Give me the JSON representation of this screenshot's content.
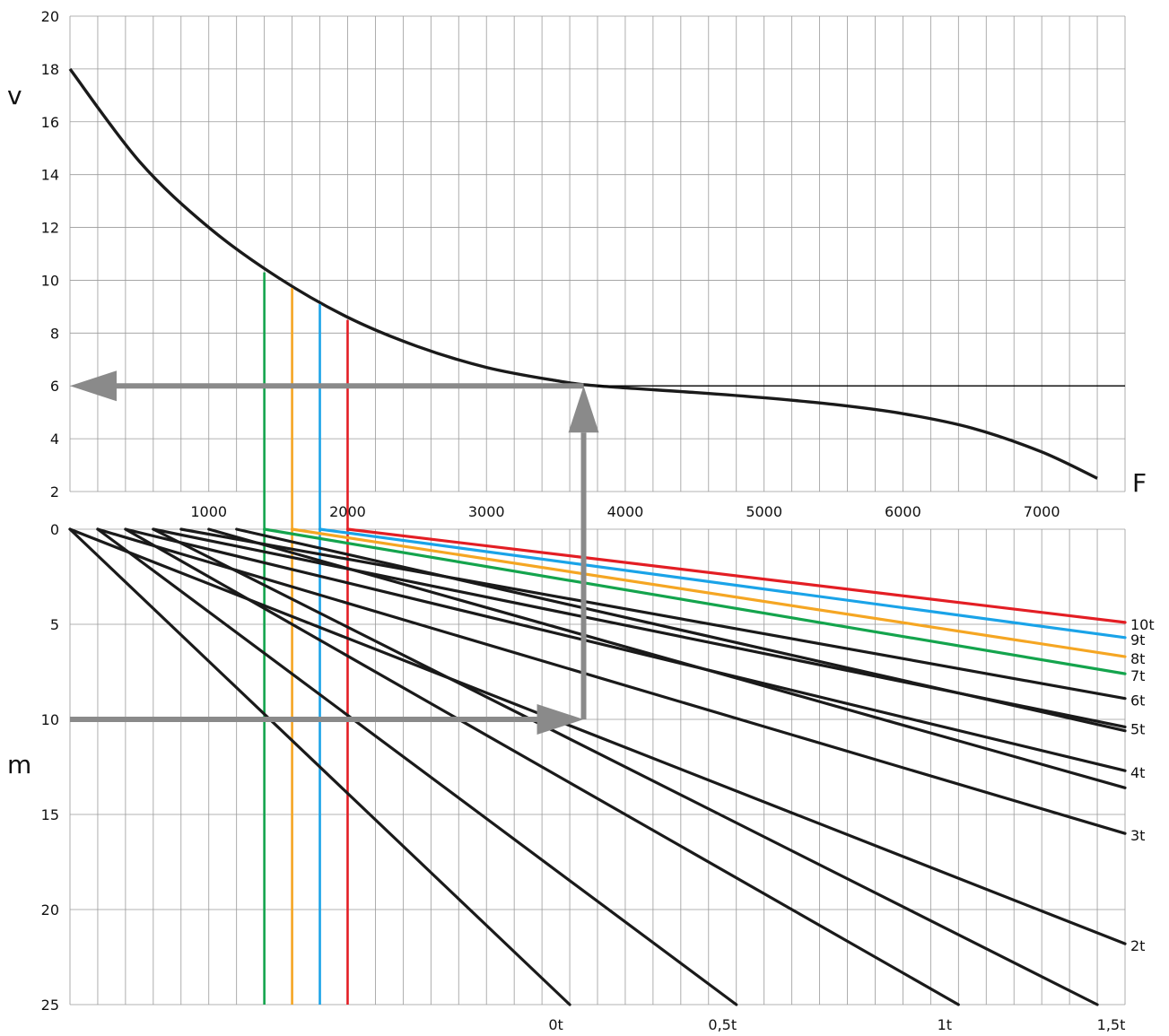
{
  "chart_data": [
    {
      "type": "line",
      "title": "",
      "ylabel": "v",
      "xlabel": "F",
      "xlim": [
        0,
        7600
      ],
      "ylim": [
        2,
        20
      ],
      "grid": true,
      "y_ticks": [
        "2",
        "4",
        "6",
        "8",
        "10",
        "12",
        "14",
        "16",
        "18",
        "20"
      ],
      "x_ticks": [
        "1000",
        "2000",
        "3000",
        "4000",
        "5000",
        "6000",
        "7000"
      ],
      "series": [
        {
          "name": "",
          "color": "#1a1a1a",
          "x": [
            0,
            500,
            1000,
            1500,
            2000,
            2500,
            3000,
            3500,
            3800,
            4500,
            5000,
            5500,
            6000,
            6500,
            7000,
            7400
          ],
          "y": [
            18,
            14.5,
            12.0,
            10.1,
            8.6,
            7.5,
            6.7,
            6.2,
            6.0,
            5.75,
            5.55,
            5.3,
            4.95,
            4.4,
            3.5,
            2.5
          ]
        }
      ],
      "horizontal_lines": [
        {
          "y": 6,
          "from_x": 3800,
          "to_x": 7600,
          "color": "#000000"
        }
      ],
      "colored_drops": [
        {
          "x": 1400,
          "top_y": 10.3,
          "color": "#14a44d"
        },
        {
          "x": 1600,
          "top_y": 9.7,
          "color": "#f5a623"
        },
        {
          "x": 1800,
          "top_y": 9.1,
          "color": "#1aa3e8"
        },
        {
          "x": 2000,
          "top_y": 8.5,
          "color": "#e31e24"
        }
      ],
      "arrows": [
        {
          "from": [
            3700,
            0
          ],
          "to": [
            3700,
            6
          ],
          "color": "#888888",
          "direction": "up"
        },
        {
          "from": [
            3700,
            6
          ],
          "to": [
            0,
            6
          ],
          "color": "#888888",
          "direction": "left"
        }
      ]
    },
    {
      "type": "line",
      "title": "",
      "ylabel": "m",
      "xlabel": "",
      "xlim": [
        0,
        7600
      ],
      "ylim": [
        0,
        25
      ],
      "y_reversed": true,
      "grid": true,
      "y_ticks": [
        "0",
        "5",
        "10",
        "15",
        "20",
        "25"
      ],
      "x_ticks_bottom": [
        "0t",
        "0,5t",
        "1t",
        "1,5t"
      ],
      "series": [
        {
          "name": "2t",
          "color": "#1a1a1a",
          "x": [
            0,
            7600
          ],
          "y": [
            0,
            21.8
          ]
        },
        {
          "name": "3t",
          "color": "#1a1a1a",
          "x": [
            200,
            7600
          ],
          "y": [
            0,
            16.0
          ]
        },
        {
          "name": "4t",
          "color": "#1a1a1a",
          "x": [
            400,
            7600
          ],
          "y": [
            0,
            12.7
          ]
        },
        {
          "name": "5t",
          "color": "#1a1a1a",
          "x": [
            600,
            7600
          ],
          "y": [
            0,
            10.4
          ]
        },
        {
          "name": "6t",
          "color": "#1a1a1a",
          "x": [
            800,
            7600
          ],
          "y": [
            0,
            8.9
          ]
        },
        {
          "name": "7t",
          "color": "#14a44d",
          "x": [
            1400,
            7600
          ],
          "y": [
            0,
            7.6
          ]
        },
        {
          "name": "8t",
          "color": "#f5a623",
          "x": [
            1600,
            7600
          ],
          "y": [
            0,
            6.7
          ]
        },
        {
          "name": "9t",
          "color": "#1aa3e8",
          "x": [
            1800,
            7600
          ],
          "y": [
            0,
            5.7
          ]
        },
        {
          "name": "10t",
          "color": "#e31e24",
          "x": [
            2000,
            7600
          ],
          "y": [
            0,
            4.9
          ]
        },
        {
          "name": "",
          "color": "#1a1a1a",
          "x": [
            0,
            3600
          ],
          "y": [
            0,
            25
          ]
        },
        {
          "name": "",
          "color": "#1a1a1a",
          "x": [
            200,
            4800
          ],
          "y": [
            0,
            25
          ]
        },
        {
          "name": "",
          "color": "#1a1a1a",
          "x": [
            400,
            6400
          ],
          "y": [
            0,
            25
          ]
        },
        {
          "name": "",
          "color": "#1a1a1a",
          "x": [
            600,
            7400
          ],
          "y": [
            0,
            25
          ]
        },
        {
          "name": "",
          "color": "#1a1a1a",
          "x": [
            1000,
            7600
          ],
          "y": [
            0,
            13.6
          ]
        },
        {
          "name": "",
          "color": "#1a1a1a",
          "x": [
            1200,
            7600
          ],
          "y": [
            0,
            10.6
          ]
        }
      ],
      "colored_drops": [
        {
          "x": 1400,
          "color": "#14a44d"
        },
        {
          "x": 1600,
          "color": "#f5a623"
        },
        {
          "x": 1800,
          "color": "#1aa3e8"
        },
        {
          "x": 2000,
          "color": "#e31e24"
        }
      ],
      "arrows": [
        {
          "from": [
            0,
            10
          ],
          "to": [
            3700,
            10
          ],
          "color": "#888888",
          "direction": "right"
        },
        {
          "from": [
            3700,
            10
          ],
          "to": [
            3700,
            0
          ],
          "color": "#888888",
          "direction": "up"
        }
      ]
    }
  ]
}
